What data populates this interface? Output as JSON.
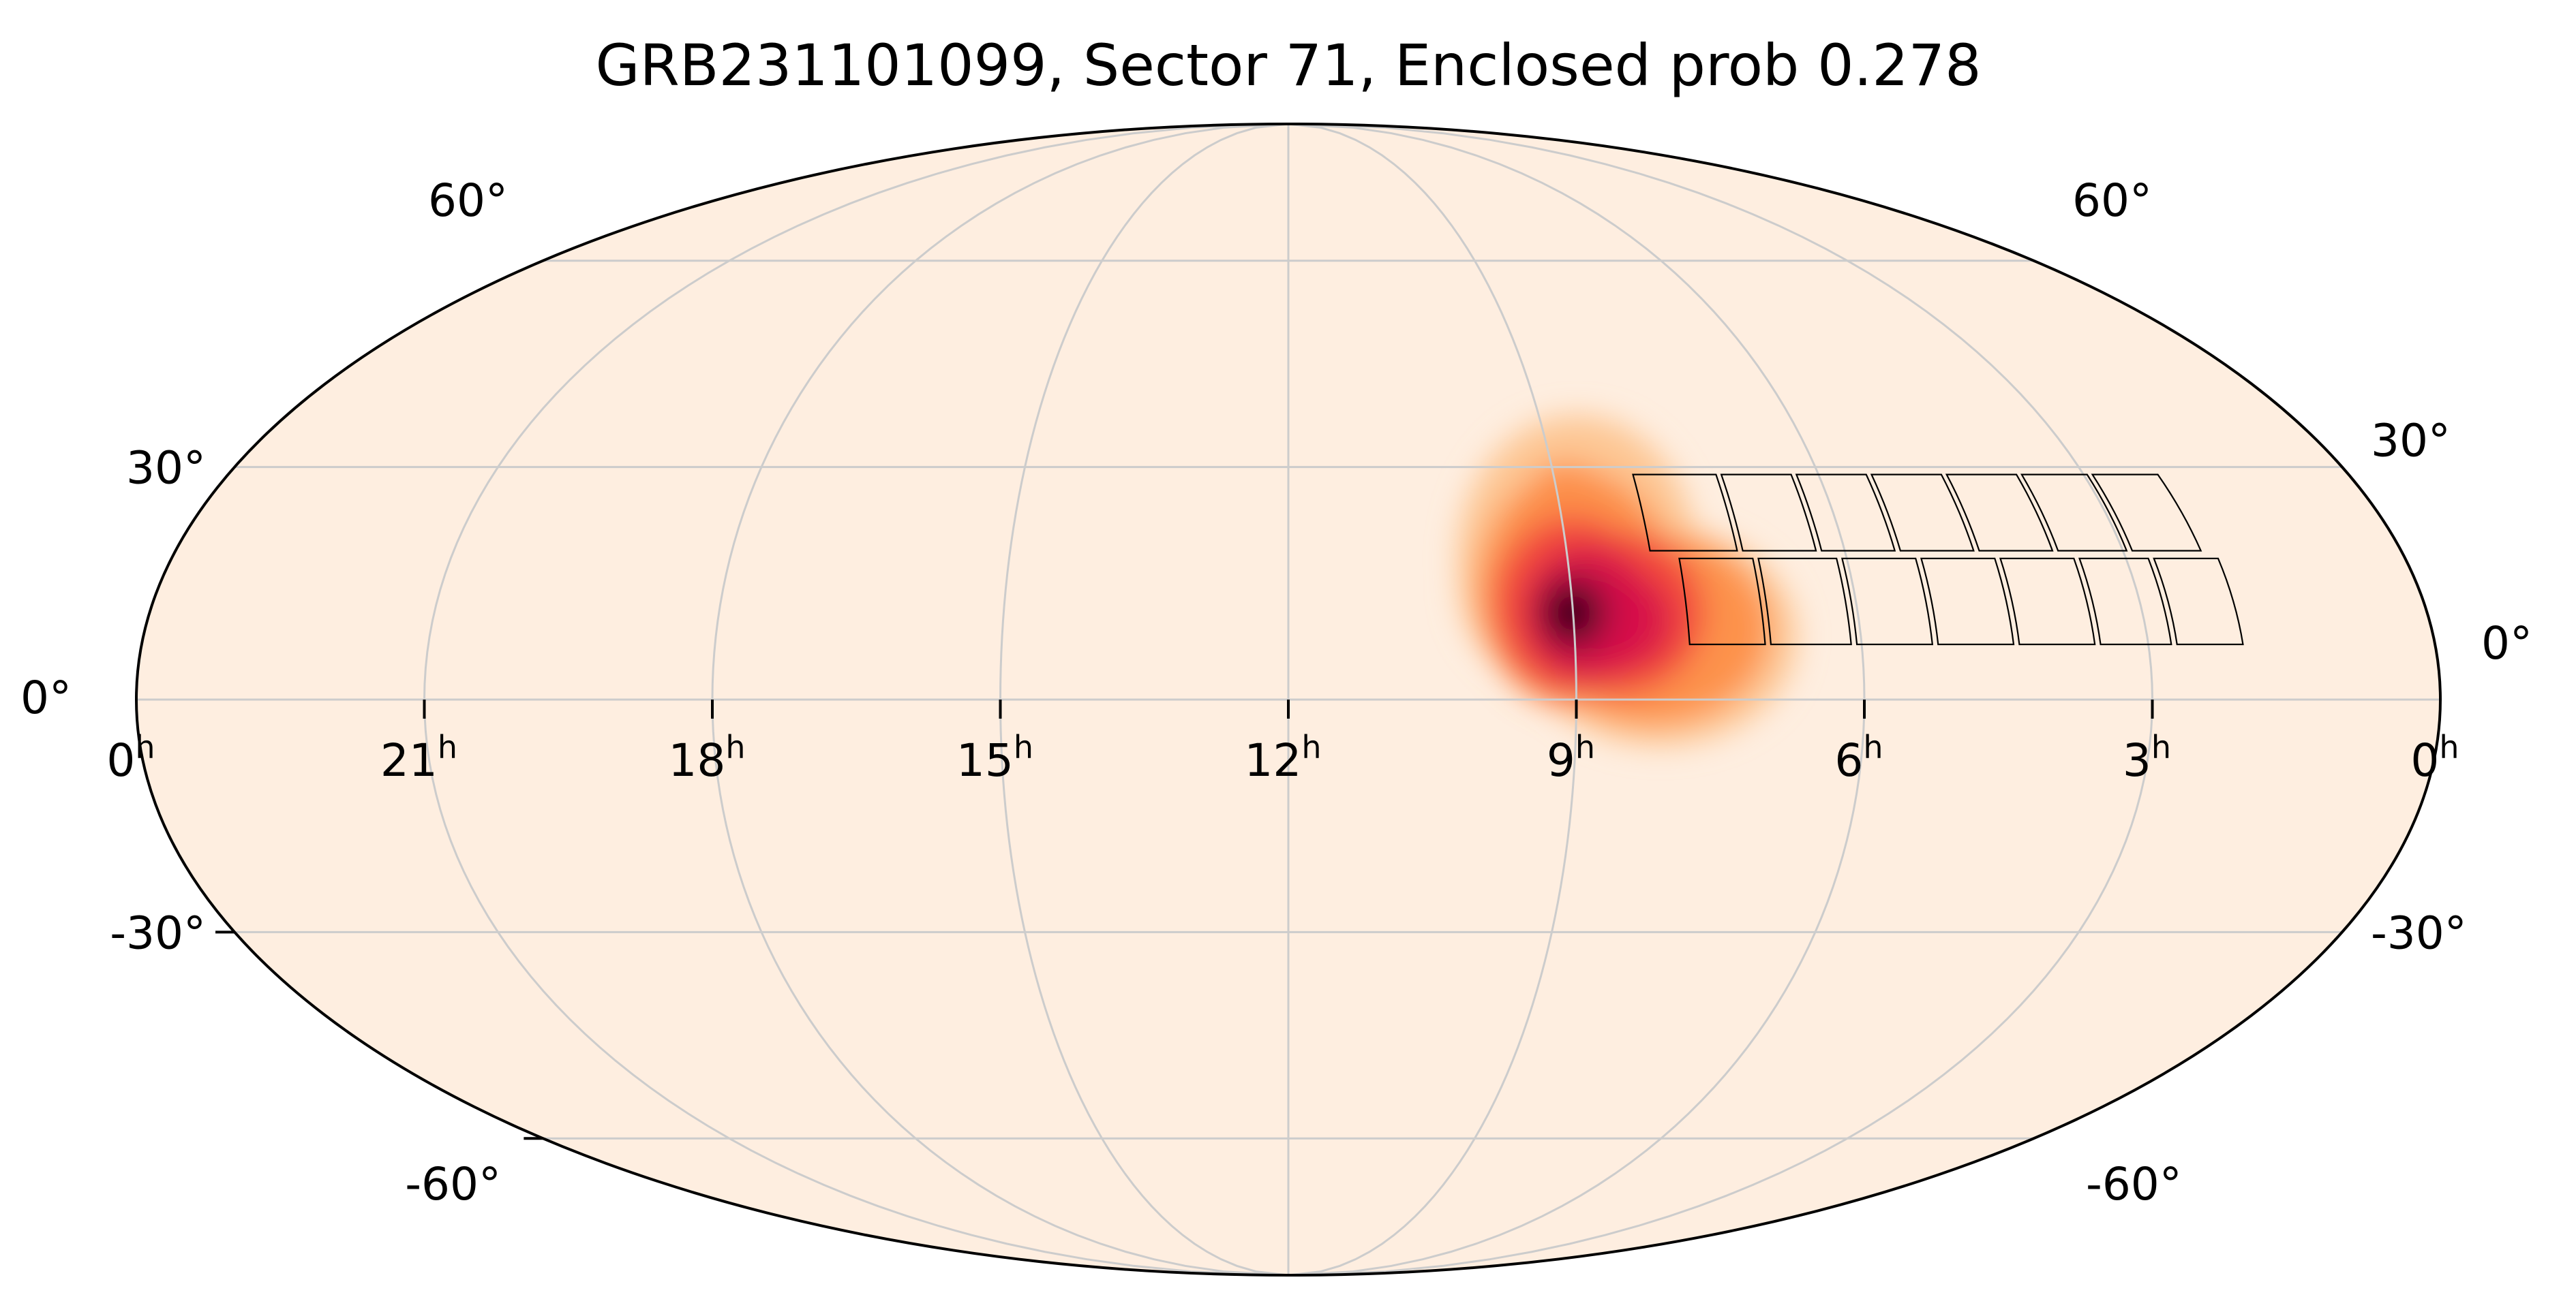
{
  "chart_data": {
    "type": "heatmap",
    "projection": "mollweide",
    "title": "GRB231101099, Sector 71, Enclosed prob 0.278",
    "ra_tick_labels": [
      {
        "hours": 24,
        "label": "0",
        "sup": "h"
      },
      {
        "hours": 21,
        "label": "21",
        "sup": "h"
      },
      {
        "hours": 18,
        "label": "18",
        "sup": "h"
      },
      {
        "hours": 15,
        "label": "15",
        "sup": "h"
      },
      {
        "hours": 12,
        "label": "12",
        "sup": "h"
      },
      {
        "hours": 9,
        "label": "9",
        "sup": "h"
      },
      {
        "hours": 6,
        "label": "6",
        "sup": "h"
      },
      {
        "hours": 3,
        "label": "3",
        "sup": "h"
      },
      {
        "hours": 0,
        "label": "0",
        "sup": "h"
      }
    ],
    "dec_tick_labels": [
      {
        "dec": 60,
        "label": "60°"
      },
      {
        "dec": 30,
        "label": "30°"
      },
      {
        "dec": 0,
        "label": "0°"
      },
      {
        "dec": -30,
        "label": "-30°"
      },
      {
        "dec": -60,
        "label": "-60°"
      }
    ],
    "grid": true,
    "grid_ra_hours": [
      21,
      18,
      15,
      12,
      9,
      6,
      3
    ],
    "grid_dec": [
      -60,
      -30,
      0,
      30,
      60
    ],
    "probability_peak": {
      "ra_hours": 9.0,
      "dec": 11
    },
    "footprint_rows": [
      {
        "name": "upper",
        "ra_hours": [
          8.1,
          7.1,
          6.25,
          5.4,
          4.55,
          3.7,
          2.9,
          2.1
        ],
        "dec": [
          19,
          29
        ]
      },
      {
        "name": "lower",
        "ra_hours": [
          7.8,
          6.95,
          6.05,
          5.2,
          4.35,
          3.5,
          2.7,
          1.95
        ],
        "dec": [
          7,
          18
        ]
      }
    ],
    "colors": {
      "background": "#feeee0",
      "grid": "#cccccc",
      "outline": "#000000",
      "colormap": [
        "#feeee0",
        "#fdc48f",
        "#fd8f49",
        "#f2473c",
        "#d61149",
        "#8a0a3a",
        "#2b0210"
      ]
    }
  }
}
